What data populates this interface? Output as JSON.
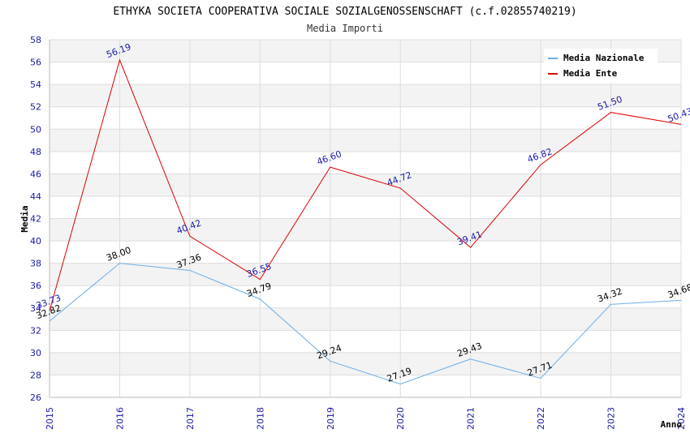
{
  "chart_data": {
    "type": "line",
    "title": "ETHYKA SOCIETA COOPERATIVA SOCIALE SOZIALGENOSSENSCHAFT (c.f.02855740219)",
    "subtitle": "Media Importi",
    "xlabel": "Anno",
    "ylabel": "Media",
    "x": [
      "2015",
      "2016",
      "2017",
      "2018",
      "2019",
      "2020",
      "2021",
      "2022",
      "2023",
      "2024"
    ],
    "ylim": [
      26,
      58
    ],
    "ytick_step": 2,
    "grid": true,
    "legend_position": "top-right",
    "series": [
      {
        "name": "Media Nazionale",
        "color": "#6aaee8",
        "label_color": "#000000",
        "values": [
          32.82,
          38.0,
          37.36,
          34.79,
          29.24,
          27.19,
          29.43,
          27.71,
          34.32,
          34.68
        ],
        "labels": [
          "32.82",
          "38.00",
          "37.36",
          "34.79",
          "29.24",
          "27.19",
          "29.43",
          "27.71",
          "34.32",
          "34.68"
        ]
      },
      {
        "name": "Media Ente",
        "color": "#dd0000",
        "label_color": "#1a1aa8",
        "values": [
          33.73,
          56.19,
          40.42,
          36.55,
          46.6,
          44.72,
          39.41,
          46.82,
          51.5,
          50.43
        ],
        "labels": [
          "33.73",
          "56.19",
          "40.42",
          "36.55",
          "46.60",
          "44.72",
          "39.41",
          "46.82",
          "51.50",
          "50.43"
        ]
      }
    ]
  }
}
